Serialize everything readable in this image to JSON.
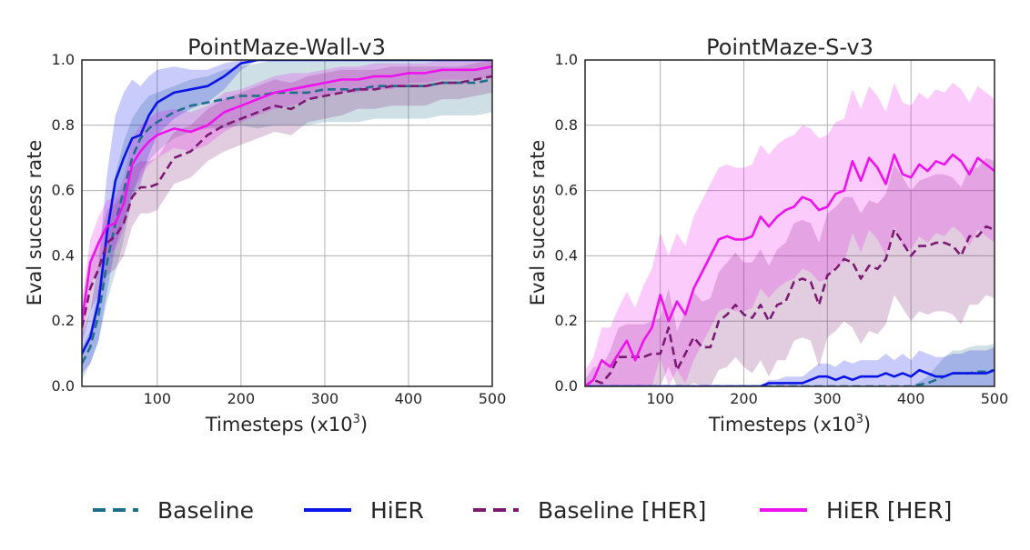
{
  "chart_data": [
    {
      "type": "line",
      "title": "PointMaze-Wall-v3",
      "xlabel": "Timesteps (x10",
      "xlabel_sup": "3",
      "xlabel_close": ")",
      "ylabel": "Eval success rate",
      "xlim": [
        10,
        500
      ],
      "ylim": [
        0,
        1.0
      ],
      "xticks": [
        100,
        200,
        300,
        400,
        500
      ],
      "xtick_labels": [
        "100",
        "200",
        "300",
        "400",
        "500"
      ],
      "yticks": [
        0,
        0.2,
        0.4,
        0.6,
        0.8,
        1.0
      ],
      "ytick_labels": [
        "0.0",
        "0.2",
        "0.4",
        "0.6",
        "0.8",
        "1.0"
      ],
      "grid": true,
      "x": [
        10,
        20,
        30,
        40,
        50,
        60,
        70,
        80,
        90,
        100,
        120,
        140,
        160,
        180,
        200,
        220,
        240,
        260,
        280,
        300,
        320,
        340,
        360,
        380,
        400,
        420,
        440,
        460,
        480,
        500
      ],
      "series": [
        {
          "name": "Baseline",
          "color": "#1f6e8c",
          "dash": true,
          "values": [
            0.07,
            0.12,
            0.22,
            0.38,
            0.5,
            0.6,
            0.7,
            0.76,
            0.79,
            0.81,
            0.84,
            0.86,
            0.87,
            0.88,
            0.89,
            0.89,
            0.9,
            0.9,
            0.9,
            0.91,
            0.91,
            0.91,
            0.92,
            0.92,
            0.92,
            0.92,
            0.93,
            0.93,
            0.93,
            0.94
          ],
          "band": [
            0.05,
            0.05,
            0.08,
            0.12,
            0.15,
            0.15,
            0.12,
            0.1,
            0.1,
            0.09,
            0.08,
            0.08,
            0.08,
            0.09,
            0.09,
            0.1,
            0.1,
            0.1,
            0.1,
            0.1,
            0.1,
            0.1,
            0.1,
            0.1,
            0.1,
            0.1,
            0.1,
            0.1,
            0.1,
            0.1
          ]
        },
        {
          "name": "HiER",
          "color": "#0a14e6",
          "dash": false,
          "values": [
            0.1,
            0.15,
            0.26,
            0.47,
            0.63,
            0.7,
            0.76,
            0.77,
            0.83,
            0.87,
            0.9,
            0.91,
            0.92,
            0.95,
            0.99,
            1.0,
            1.0,
            1.0,
            1.0,
            1.0,
            1.0,
            1.0,
            1.0,
            1.0,
            1.0,
            1.0,
            1.0,
            1.0,
            1.0,
            1.0
          ],
          "band": [
            0.06,
            0.08,
            0.12,
            0.18,
            0.2,
            0.2,
            0.18,
            0.15,
            0.12,
            0.1,
            0.08,
            0.06,
            0.05,
            0.04,
            0.02,
            0.0,
            0.0,
            0.0,
            0.0,
            0.0,
            0.0,
            0.0,
            0.0,
            0.0,
            0.0,
            0.0,
            0.0,
            0.0,
            0.0,
            0.0
          ]
        },
        {
          "name": "Baseline [HER]",
          "color": "#7b1a73",
          "dash": true,
          "values": [
            0.18,
            0.3,
            0.36,
            0.44,
            0.46,
            0.5,
            0.58,
            0.61,
            0.61,
            0.62,
            0.7,
            0.72,
            0.77,
            0.8,
            0.82,
            0.84,
            0.86,
            0.85,
            0.88,
            0.89,
            0.9,
            0.91,
            0.91,
            0.92,
            0.92,
            0.92,
            0.93,
            0.93,
            0.94,
            0.95
          ],
          "band": [
            0.05,
            0.07,
            0.08,
            0.1,
            0.1,
            0.1,
            0.09,
            0.08,
            0.08,
            0.08,
            0.08,
            0.08,
            0.08,
            0.08,
            0.08,
            0.08,
            0.08,
            0.08,
            0.07,
            0.07,
            0.07,
            0.06,
            0.06,
            0.06,
            0.06,
            0.06,
            0.05,
            0.05,
            0.05,
            0.05
          ]
        },
        {
          "name": "HiER [HER]",
          "color": "#ee12ee",
          "dash": false,
          "values": [
            0.2,
            0.38,
            0.44,
            0.49,
            0.5,
            0.56,
            0.68,
            0.72,
            0.75,
            0.77,
            0.79,
            0.78,
            0.8,
            0.84,
            0.86,
            0.88,
            0.9,
            0.91,
            0.92,
            0.93,
            0.94,
            0.94,
            0.95,
            0.95,
            0.96,
            0.96,
            0.97,
            0.97,
            0.97,
            0.98
          ],
          "band": [
            0.06,
            0.07,
            0.08,
            0.08,
            0.08,
            0.08,
            0.08,
            0.08,
            0.07,
            0.07,
            0.06,
            0.06,
            0.06,
            0.06,
            0.05,
            0.05,
            0.05,
            0.05,
            0.04,
            0.04,
            0.04,
            0.04,
            0.04,
            0.04,
            0.03,
            0.03,
            0.03,
            0.03,
            0.03,
            0.03
          ]
        }
      ]
    },
    {
      "type": "line",
      "title": "PointMaze-S-v3",
      "xlabel": "Timesteps (x10",
      "xlabel_sup": "3",
      "xlabel_close": ")",
      "ylabel": "Eval success rate",
      "xlim": [
        10,
        500
      ],
      "ylim": [
        0,
        1.0
      ],
      "xticks": [
        100,
        200,
        300,
        400,
        500
      ],
      "xtick_labels": [
        "100",
        "200",
        "300",
        "400",
        "500"
      ],
      "yticks": [
        0,
        0.2,
        0.4,
        0.6,
        0.8,
        1.0
      ],
      "ytick_labels": [
        "0.0",
        "0.2",
        "0.4",
        "0.6",
        "0.8",
        "1.0"
      ],
      "grid": true,
      "x": [
        10,
        20,
        30,
        40,
        50,
        60,
        70,
        80,
        90,
        100,
        110,
        120,
        130,
        140,
        150,
        160,
        170,
        180,
        190,
        200,
        210,
        220,
        230,
        240,
        250,
        260,
        270,
        280,
        290,
        300,
        310,
        320,
        330,
        340,
        350,
        360,
        370,
        380,
        390,
        400,
        410,
        420,
        430,
        440,
        450,
        460,
        470,
        480,
        490,
        500
      ],
      "series": [
        {
          "name": "Baseline",
          "color": "#1f6e8c",
          "dash": true,
          "values": [
            0,
            0,
            0,
            0,
            0,
            0,
            0,
            0,
            0,
            0,
            0,
            0,
            0,
            0,
            0,
            0,
            0,
            0,
            0,
            0,
            0,
            0,
            0,
            0,
            0,
            0,
            0,
            0,
            0,
            0,
            0,
            0,
            0,
            0,
            0,
            0,
            0,
            0,
            0,
            0,
            0.005,
            0.01,
            0.02,
            0.03,
            0.04,
            0.04,
            0.04,
            0.045,
            0.045,
            0.05
          ],
          "band": [
            0,
            0,
            0,
            0,
            0,
            0,
            0,
            0,
            0,
            0,
            0,
            0,
            0,
            0,
            0,
            0,
            0,
            0,
            0,
            0,
            0,
            0,
            0,
            0,
            0,
            0,
            0,
            0,
            0,
            0,
            0,
            0,
            0,
            0,
            0,
            0,
            0,
            0,
            0,
            0,
            0.01,
            0.02,
            0.04,
            0.06,
            0.07,
            0.07,
            0.08,
            0.08,
            0.08,
            0.08
          ]
        },
        {
          "name": "HiER",
          "color": "#0a14e6",
          "dash": false,
          "values": [
            0,
            0,
            0,
            0,
            0,
            0,
            0,
            0,
            0,
            0,
            0,
            0,
            0,
            0,
            0,
            0,
            0,
            0,
            0,
            0,
            0,
            0,
            0.01,
            0.01,
            0.01,
            0.01,
            0.01,
            0.02,
            0.03,
            0.03,
            0.02,
            0.03,
            0.02,
            0.03,
            0.03,
            0.03,
            0.04,
            0.03,
            0.04,
            0.03,
            0.05,
            0.04,
            0.03,
            0.03,
            0.04,
            0.04,
            0.04,
            0.04,
            0.04,
            0.05
          ],
          "band": [
            0,
            0,
            0,
            0,
            0,
            0,
            0,
            0,
            0,
            0,
            0,
            0,
            0,
            0,
            0,
            0,
            0,
            0,
            0,
            0,
            0,
            0,
            0.01,
            0.01,
            0.02,
            0.02,
            0.02,
            0.03,
            0.04,
            0.04,
            0.04,
            0.05,
            0.05,
            0.05,
            0.05,
            0.05,
            0.06,
            0.05,
            0.06,
            0.05,
            0.06,
            0.06,
            0.06,
            0.06,
            0.06,
            0.06,
            0.07,
            0.07,
            0.07,
            0.07
          ]
        },
        {
          "name": "Baseline [HER]",
          "color": "#7b1a73",
          "dash": true,
          "values": [
            0.0,
            0.02,
            0.01,
            0.04,
            0.09,
            0.09,
            0.09,
            0.09,
            0.1,
            0.1,
            0.18,
            0.05,
            0.1,
            0.15,
            0.12,
            0.12,
            0.2,
            0.22,
            0.25,
            0.22,
            0.21,
            0.25,
            0.2,
            0.25,
            0.26,
            0.32,
            0.33,
            0.32,
            0.25,
            0.34,
            0.36,
            0.39,
            0.38,
            0.33,
            0.37,
            0.36,
            0.39,
            0.48,
            0.44,
            0.4,
            0.43,
            0.43,
            0.44,
            0.44,
            0.43,
            0.4,
            0.46,
            0.46,
            0.49,
            0.48
          ],
          "band": [
            0.02,
            0.04,
            0.05,
            0.07,
            0.09,
            0.1,
            0.1,
            0.1,
            0.1,
            0.11,
            0.12,
            0.12,
            0.13,
            0.14,
            0.14,
            0.15,
            0.15,
            0.16,
            0.16,
            0.16,
            0.17,
            0.17,
            0.17,
            0.17,
            0.18,
            0.18,
            0.18,
            0.18,
            0.19,
            0.19,
            0.19,
            0.19,
            0.2,
            0.2,
            0.2,
            0.2,
            0.2,
            0.2,
            0.2,
            0.2,
            0.2,
            0.21,
            0.21,
            0.21,
            0.21,
            0.21,
            0.21,
            0.21,
            0.21,
            0.21
          ]
        },
        {
          "name": "HiER [HER]",
          "color": "#ee12ee",
          "dash": false,
          "values": [
            0.0,
            0.02,
            0.08,
            0.06,
            0.1,
            0.14,
            0.08,
            0.14,
            0.18,
            0.28,
            0.2,
            0.26,
            0.22,
            0.3,
            0.35,
            0.4,
            0.45,
            0.46,
            0.45,
            0.45,
            0.46,
            0.52,
            0.49,
            0.52,
            0.54,
            0.55,
            0.58,
            0.57,
            0.54,
            0.55,
            0.59,
            0.6,
            0.69,
            0.63,
            0.7,
            0.67,
            0.62,
            0.71,
            0.65,
            0.64,
            0.68,
            0.66,
            0.69,
            0.68,
            0.71,
            0.69,
            0.65,
            0.7,
            0.68,
            0.66
          ],
          "band": [
            0.05,
            0.07,
            0.1,
            0.12,
            0.14,
            0.15,
            0.16,
            0.17,
            0.18,
            0.19,
            0.2,
            0.21,
            0.21,
            0.22,
            0.22,
            0.22,
            0.22,
            0.22,
            0.22,
            0.22,
            0.22,
            0.22,
            0.22,
            0.22,
            0.22,
            0.22,
            0.22,
            0.22,
            0.22,
            0.22,
            0.22,
            0.22,
            0.22,
            0.22,
            0.22,
            0.22,
            0.22,
            0.22,
            0.22,
            0.22,
            0.22,
            0.22,
            0.22,
            0.22,
            0.22,
            0.22,
            0.22,
            0.22,
            0.22,
            0.22
          ]
        }
      ]
    }
  ],
  "legend": {
    "placement": "bottom",
    "items": [
      {
        "label": "Baseline",
        "color": "#1f6e8c",
        "dash": true
      },
      {
        "label": "HiER",
        "color": "#0a14e6",
        "dash": false
      },
      {
        "label": "Baseline [HER]",
        "color": "#7b1a73",
        "dash": true
      },
      {
        "label": "HiER [HER]",
        "color": "#ee12ee",
        "dash": false
      }
    ]
  }
}
